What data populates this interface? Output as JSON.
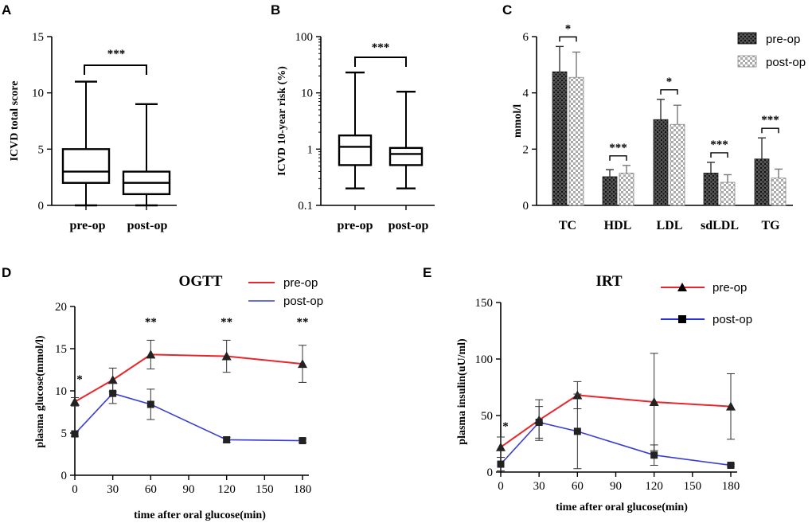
{
  "panels": {
    "A": "A",
    "B": "B",
    "C": "C",
    "D": "D",
    "E": "E"
  },
  "colors": {
    "pre": "#e8262b",
    "post": "#3a3fd2",
    "black": "#000000"
  },
  "chart_data": [
    {
      "id": "A",
      "type": "box",
      "ylabel": "ICVD total score",
      "ylim": [
        0,
        15
      ],
      "yticks": [
        "0",
        "5",
        "10",
        "15"
      ],
      "categories": [
        "pre-op",
        "post-op"
      ],
      "boxes": [
        {
          "name": "pre-op",
          "min": 0,
          "q1": 2,
          "median": 3,
          "q3": 5,
          "max": 11
        },
        {
          "name": "post-op",
          "min": 0,
          "q1": 1,
          "median": 2,
          "q3": 3,
          "max": 9
        }
      ],
      "significance": "***"
    },
    {
      "id": "B",
      "type": "box",
      "scale": "log",
      "ylabel": "ICVD 10-year risk (%)",
      "ylim": [
        0.1,
        100
      ],
      "yticks": [
        "0.1",
        "1",
        "10",
        "100"
      ],
      "categories": [
        "pre-op",
        "post-op"
      ],
      "boxes": [
        {
          "name": "pre-op",
          "min": 0.2,
          "q1": 0.52,
          "median": 1.1,
          "q3": 1.75,
          "max": 23
        },
        {
          "name": "post-op",
          "min": 0.2,
          "q1": 0.52,
          "median": 0.82,
          "q3": 1.05,
          "max": 10.5
        }
      ],
      "significance": "***"
    },
    {
      "id": "C",
      "type": "bar",
      "ylabel": "mmol/l",
      "ylim": [
        0,
        6
      ],
      "yticks": [
        "0",
        "2",
        "4",
        "6"
      ],
      "categories": [
        "TC",
        "HDL",
        "LDL",
        "sdLDL",
        "TG"
      ],
      "legend": [
        "pre-op",
        "post-op"
      ],
      "series": [
        {
          "name": "pre-op",
          "values": [
            4.75,
            1.02,
            3.05,
            1.15,
            1.65
          ],
          "errors": [
            0.9,
            0.25,
            0.72,
            0.38,
            0.75
          ]
        },
        {
          "name": "post-op",
          "values": [
            4.55,
            1.15,
            2.88,
            0.82,
            0.97
          ],
          "errors": [
            0.9,
            0.27,
            0.68,
            0.27,
            0.32
          ]
        }
      ],
      "significance": [
        "*",
        "***",
        "*",
        "***",
        "***"
      ]
    },
    {
      "id": "D",
      "type": "line",
      "title": "OGTT",
      "xlabel": "time after oral glucose(min)",
      "ylabel": "plasma glucose(mmol/l)",
      "xlim": [
        0,
        180
      ],
      "ylim": [
        0,
        20
      ],
      "xticks": [
        "0",
        "30",
        "60",
        "90",
        "120",
        "150",
        "180"
      ],
      "yticks": [
        "0",
        "5",
        "10",
        "15",
        "20"
      ],
      "x": [
        0,
        30,
        60,
        120,
        180
      ],
      "legend": [
        "pre-op",
        "post-op"
      ],
      "series": [
        {
          "name": "pre-op",
          "marker": "triangle",
          "values": [
            8.7,
            11.3,
            14.3,
            14.1,
            13.2
          ],
          "errors": [
            0.5,
            1.4,
            1.7,
            1.9,
            2.2
          ]
        },
        {
          "name": "post-op",
          "marker": "square",
          "values": [
            4.9,
            9.7,
            8.4,
            4.2,
            4.1
          ],
          "errors": [
            0.3,
            1.2,
            1.8,
            0.3,
            0.2
          ]
        }
      ],
      "significance": [
        {
          "x": 0,
          "label": "*"
        },
        {
          "x": 60,
          "label": "**"
        },
        {
          "x": 120,
          "label": "**"
        },
        {
          "x": 180,
          "label": "**"
        }
      ]
    },
    {
      "id": "E",
      "type": "line",
      "title": "IRT",
      "xlabel": "time after oral glucose(min)",
      "ylabel": "plasma insulin(uU/ml)",
      "xlim": [
        0,
        180
      ],
      "ylim": [
        0,
        150
      ],
      "xticks": [
        "0",
        "30",
        "60",
        "90",
        "120",
        "150",
        "180"
      ],
      "yticks": [
        "0",
        "50",
        "100",
        "150"
      ],
      "x": [
        0,
        30,
        60,
        120,
        180
      ],
      "legend": [
        "pre-op",
        "post-op"
      ],
      "series": [
        {
          "name": "pre-op",
          "marker": "triangle",
          "values": [
            22,
            46,
            68,
            62,
            58
          ],
          "errors": [
            9,
            18,
            12,
            43,
            29
          ]
        },
        {
          "name": "post-op",
          "marker": "square",
          "values": [
            7,
            44,
            36,
            15,
            6
          ],
          "errors": [
            6,
            14,
            33,
            9,
            1
          ]
        }
      ],
      "significance": [
        {
          "x": 0,
          "label": "*"
        }
      ]
    }
  ]
}
